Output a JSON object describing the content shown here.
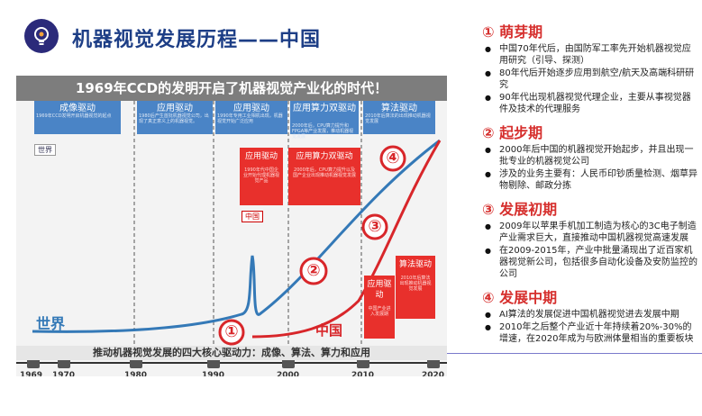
{
  "header": {
    "title": "机器视觉发展历程——中国",
    "logo_icon": "lightbulb-gear-icon"
  },
  "figure": {
    "banner": "1969年CCD的发明开启了机器视觉产业化的时代！",
    "eras": [
      {
        "label": "成像驱动",
        "desc": "1969年CCD发明开启机器视觉的起点"
      },
      {
        "label": "应用驱动",
        "desc": "1980后产生首批机器视觉公司，出现了真正意义上的机器视觉。"
      },
      {
        "label": "应用驱动",
        "desc": "1990年专用工业相机出现，机器视觉开始广泛应用"
      },
      {
        "label": "应用算力双驱动",
        "desc": "2000年后，CPU算力提升和FPGA等产业发展，推动机器视觉发展"
      },
      {
        "label": "算法驱动",
        "desc": "2010年后算法的出现推动机器视觉发展"
      }
    ],
    "china_boxes": [
      {
        "label": "应用驱动",
        "desc": "1990年代中国企业开始代理机器视觉产品"
      },
      {
        "label": "应用算力双驱动",
        "desc": "2000年后，CPU算力提升以及国产企业出现推动机器视觉发展"
      },
      {
        "label": "算法驱动",
        "desc": "2010年后算法出现推动机器视觉发展"
      },
      {
        "label": "应用驱动",
        "desc": "中国产业进入发展期"
      }
    ],
    "tag_world": "世界",
    "tag_china": "中国",
    "label_world": "世界",
    "label_china": "中国",
    "stage_markers": [
      "①",
      "②",
      "③",
      "④"
    ],
    "bottom_caption": "推动机器视觉发展的四大核心驱动力：成像、算法、算力和应用",
    "years": [
      "1969",
      "1970",
      "1980",
      "1990",
      "2000",
      "2010",
      "2020"
    ],
    "colors": {
      "world": "#3479b7",
      "china": "#d8262a",
      "era": "#4a84c6",
      "china_box": "#e8302c"
    }
  },
  "chart_data": {
    "type": "line",
    "x": [
      1969,
      1970,
      1980,
      1990,
      2000,
      2010,
      2020
    ],
    "series": [
      {
        "name": "世界"
      },
      {
        "name": "中国"
      }
    ]
  },
  "sections": [
    {
      "title": "① 萌芽期",
      "items": [
        "中国70年代后，由国防军工率先开始机器视觉应用研究（引导、探测）",
        "80年代后开始逐步应用到航空/航天及高端科研研究",
        "90年代出现机器视觉代理企业，主要从事视觉器件及技术的代理服务"
      ]
    },
    {
      "title": "② 起步期",
      "items": [
        "2000年后中国的机器视觉开始起步，并且出现一批专业的机器视觉公司",
        "涉及的业务主要有：人民币印钞质量检测、烟草异物剔除、邮政分拣"
      ]
    },
    {
      "title": "③ 发展初期",
      "items": [
        "2009年以苹果手机加工制造为核心的3C电子制造产业需求巨大，直接推动中国机器视觉高速发展",
        "在2009-2015年，产业中批量涌现出了近百家机器视觉新公司，包括很多自动化设备及安防监控的公司"
      ]
    },
    {
      "title": "④ 发展中期",
      "items": [
        "AI算法的发展促进中国机器视觉进去发展中期",
        "2010年之后整个产业近十年持续着20%-30%的增速，在2020年成为与欧洲体量相当的重要板块"
      ]
    }
  ]
}
